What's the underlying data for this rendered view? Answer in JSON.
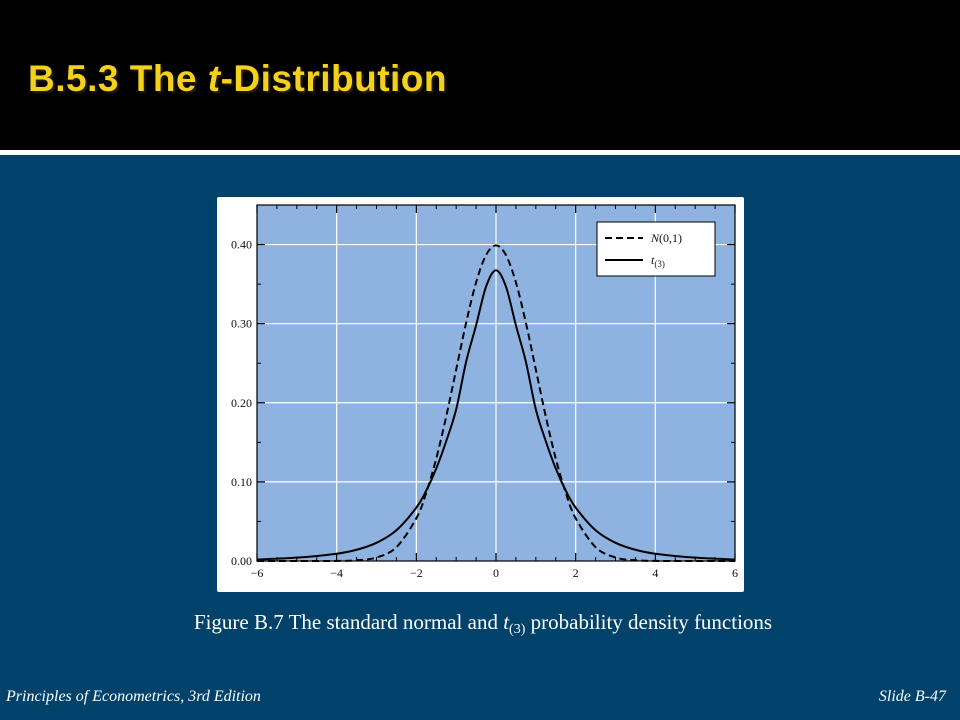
{
  "slide": {
    "title_prefix": "B.5.3 The ",
    "title_italic": "t",
    "title_suffix": "-Distribution",
    "caption_prefix": "Figure B.7 The standard normal and ",
    "caption_t": "t",
    "caption_sub": "(3)",
    "caption_suffix": " probability density functions",
    "footer_left": "Principles of Econometrics, 3rd Edition",
    "footer_right": "Slide B-47"
  },
  "colors": {
    "background": "#01426a",
    "header": "#000000",
    "title": "#f2d21c",
    "plot_area": "#8eb3e0",
    "curve": "#000000"
  },
  "chart_data": {
    "type": "line",
    "title": "",
    "xlabel": "",
    "ylabel": "",
    "xlim": [
      -6,
      6
    ],
    "ylim": [
      0,
      0.45
    ],
    "x_ticks": [
      -6,
      -4,
      -2,
      0,
      2,
      4,
      6
    ],
    "x_tick_labels": [
      "−6",
      "−4",
      "−2",
      "0",
      "2",
      "4",
      "6"
    ],
    "y_ticks": [
      0,
      0.1,
      0.2,
      0.3,
      0.4
    ],
    "y_tick_labels": [
      "0.00",
      "0.10",
      "0.20",
      "0.30",
      "0.40"
    ],
    "grid": true,
    "legend_position": "top-right",
    "series": [
      {
        "name": "N(0,1)",
        "name_base": "N",
        "name_rest": "(0,1)",
        "style": "dashed",
        "x": [
          -6,
          -5,
          -4,
          -3.5,
          -3,
          -2.5,
          -2,
          -1.75,
          -1.5,
          -1.25,
          -1,
          -0.75,
          -0.5,
          -0.25,
          0,
          0.25,
          0.5,
          0.75,
          1,
          1.25,
          1.5,
          1.75,
          2,
          2.5,
          3,
          3.5,
          4,
          5,
          6
        ],
        "y": [
          0.0,
          0.0,
          0.0001,
          0.0009,
          0.0044,
          0.0175,
          0.054,
          0.0863,
          0.1295,
          0.1826,
          0.242,
          0.3011,
          0.3521,
          0.3867,
          0.3989,
          0.3867,
          0.3521,
          0.3011,
          0.242,
          0.1826,
          0.1295,
          0.0863,
          0.054,
          0.0175,
          0.0044,
          0.0009,
          0.0001,
          0.0,
          0.0
        ]
      },
      {
        "name": "t(3)",
        "name_base": "t",
        "name_rest": "(3)",
        "style": "solid",
        "x": [
          -6,
          -5,
          -4,
          -3.5,
          -3,
          -2.5,
          -2,
          -1.75,
          -1.5,
          -1.25,
          -1,
          -0.75,
          -0.5,
          -0.25,
          0,
          0.25,
          0.5,
          0.75,
          1,
          1.25,
          1.5,
          1.75,
          2,
          2.5,
          3,
          3.5,
          4,
          5,
          6
        ],
        "y": [
          0.0019,
          0.0042,
          0.0092,
          0.0142,
          0.023,
          0.0389,
          0.0675,
          0.0891,
          0.1169,
          0.1515,
          0.1916,
          0.2519,
          0.2978,
          0.3468,
          0.3676,
          0.3468,
          0.2978,
          0.2519,
          0.1916,
          0.1515,
          0.1169,
          0.0891,
          0.0675,
          0.0389,
          0.023,
          0.0142,
          0.0092,
          0.0042,
          0.0019
        ]
      }
    ]
  }
}
